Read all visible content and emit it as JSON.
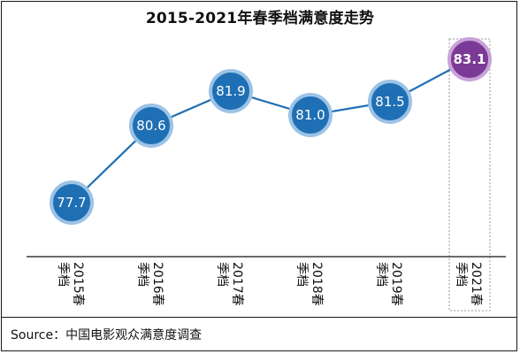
{
  "title": "2015-2021年春季档满意度走势",
  "source": "Source：中国电影观众满意度调查",
  "colors": {
    "line": "#1f6fb4",
    "marker_fill": "#1f6fb4",
    "marker_ring": "#9cc3e6",
    "highlight_fill": "#7b3a96",
    "highlight_ring": "#c9a3d9",
    "axis": "#3a3a3a",
    "highlight_box": "#9a9a9a"
  },
  "chart_data": {
    "type": "line",
    "categories": [
      "2015春季档",
      "2016春季档",
      "2017春季档",
      "2018春季档",
      "2019春季档",
      "2021春季档"
    ],
    "category_labels": [
      {
        "year": "2015春",
        "season": "季档"
      },
      {
        "year": "2016春",
        "season": "季档"
      },
      {
        "year": "2017春",
        "season": "季档"
      },
      {
        "year": "2018春",
        "season": "季档"
      },
      {
        "year": "2019春",
        "season": "季档"
      },
      {
        "year": "2021春",
        "season": "季档"
      }
    ],
    "values": [
      77.7,
      80.6,
      81.9,
      81.0,
      81.5,
      83.1
    ],
    "value_labels": [
      "77.7",
      "80.6",
      "81.9",
      "81.0",
      "81.5",
      "83.1"
    ],
    "highlight_index": 5,
    "ylim": [
      76.5,
      84
    ],
    "title": "2015-2021年春季档满意度走势",
    "xlabel": "",
    "ylabel": "",
    "grid": false,
    "legend": "none"
  }
}
